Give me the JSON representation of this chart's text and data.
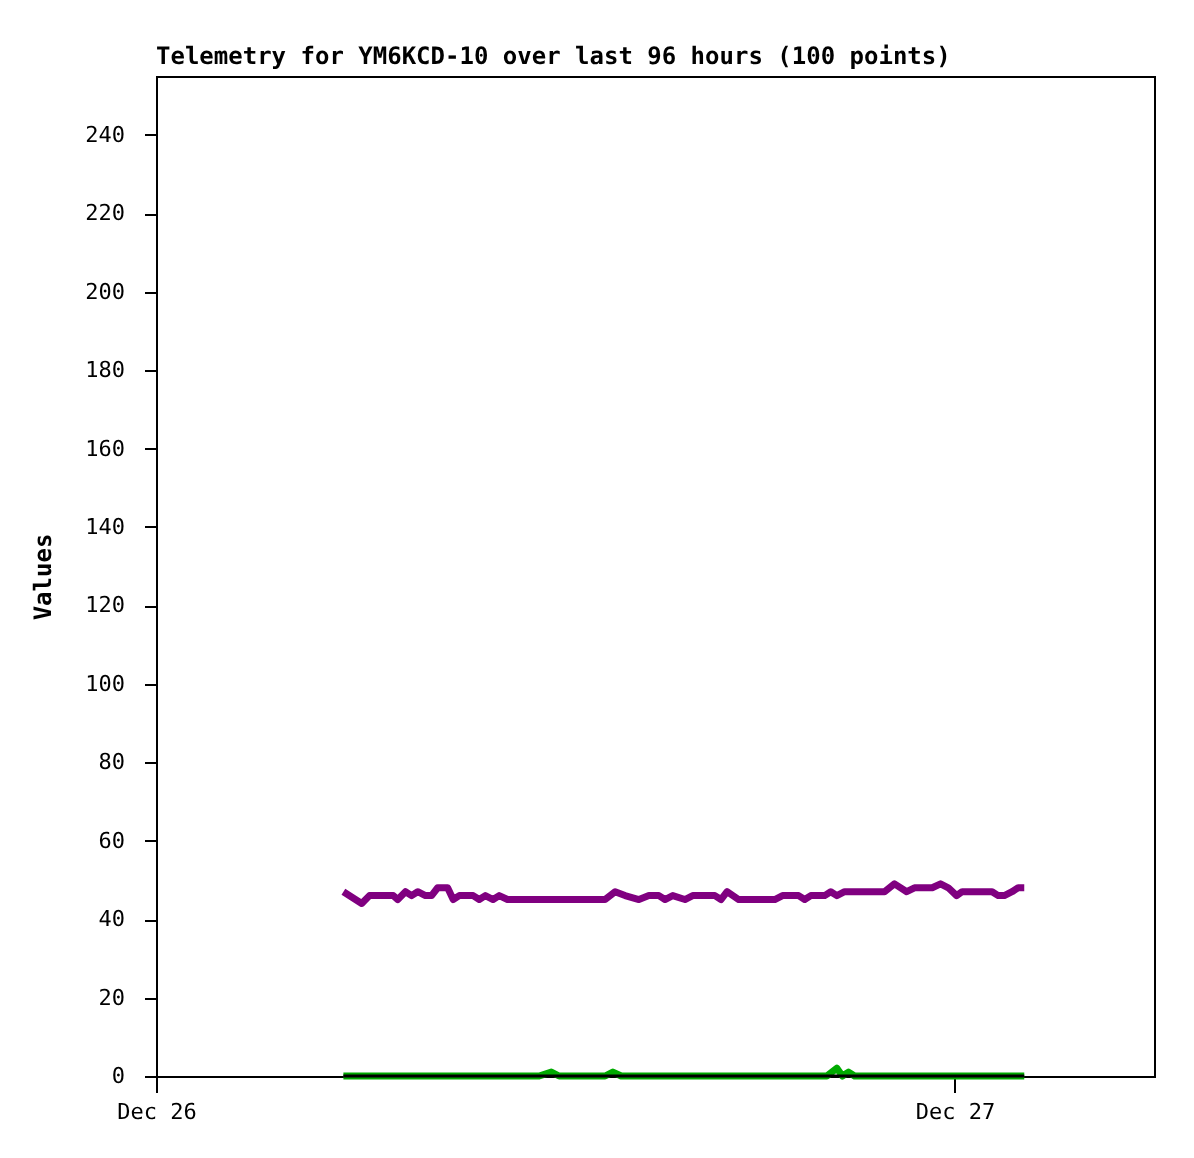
{
  "chart_data": {
    "type": "line",
    "title": "Telemetry for YM6KCD-10 over last 96 hours (100 points)",
    "ylabel": "Values",
    "xlim": [
      "--12-26T00:00",
      "--12-27T06:00"
    ],
    "xticks": [
      {
        "value": "--12-26T00:00",
        "label": "Dec 26"
      },
      {
        "value": "--12-27T00:00",
        "label": "Dec 27"
      }
    ],
    "ylim": [
      0,
      255
    ],
    "yticks": [
      0,
      20,
      40,
      60,
      80,
      100,
      120,
      140,
      160,
      180,
      200,
      220,
      240
    ],
    "grid": false,
    "legend": false,
    "marker": "none",
    "line_style": "solid",
    "series": [
      {
        "color": "#800080",
        "x": [
          "--12-26T05:38",
          "--12-26T06:11",
          "--12-26T06:25",
          "--12-26T07:08",
          "--12-26T07:16",
          "--12-26T07:30",
          "--12-26T07:41",
          "--12-26T07:52",
          "--12-26T08:06",
          "--12-26T08:17",
          "--12-26T08:28",
          "--12-26T08:46",
          "--12-26T08:56",
          "--12-26T09:07",
          "--12-26T09:32",
          "--12-26T09:43",
          "--12-26T09:54",
          "--12-26T10:08",
          "--12-26T10:19",
          "--12-26T10:34",
          "--12-26T13:19",
          "--12-26T13:30",
          "--12-26T13:48",
          "--12-26T14:06",
          "--12-26T14:31",
          "--12-26T14:49",
          "--12-26T15:07",
          "--12-26T15:18",
          "--12-26T15:32",
          "--12-26T15:54",
          "--12-26T16:08",
          "--12-26T16:48",
          "--12-26T16:59",
          "--12-26T17:10",
          "--12-26T17:31",
          "--12-26T18:36",
          "--12-26T18:50",
          "--12-26T19:19",
          "--12-26T19:30",
          "--12-26T19:41",
          "--12-26T20:06",
          "--12-26T20:17",
          "--12-26T20:28",
          "--12-26T20:42",
          "--12-26T21:54",
          "--12-26T22:12",
          "--12-26T22:34",
          "--12-26T22:48",
          "--12-26T23:20",
          "--12-26T23:35",
          "--12-26T23:49",
          "--12-27T00:04",
          "--12-27T00:14",
          "--12-27T01:08",
          "--12-27T01:19",
          "--12-27T01:30",
          "--12-27T01:44",
          "--12-27T01:55",
          "--12-27T02:06"
        ],
        "values": [
          47,
          44,
          46,
          46,
          45,
          47,
          46,
          47,
          46,
          46,
          48,
          48,
          45,
          46,
          46,
          45,
          46,
          45,
          46,
          45,
          45,
          45,
          47,
          46,
          45,
          46,
          46,
          45,
          46,
          45,
          46,
          46,
          45,
          47,
          45,
          45,
          46,
          46,
          45,
          46,
          46,
          47,
          46,
          47,
          47,
          49,
          47,
          48,
          48,
          49,
          48,
          46,
          47,
          47,
          46,
          46,
          47,
          48,
          48
        ]
      },
      {
        "color": "#00aa00",
        "x": [
          "--12-26T05:38",
          "--12-26T11:31",
          "--12-26T11:53",
          "--12-26T12:07",
          "--12-26T13:30",
          "--12-26T13:44",
          "--12-26T13:59",
          "--12-26T20:10",
          "--12-26T20:28",
          "--12-26T20:38",
          "--12-26T20:49",
          "--12-26T21:00",
          "--12-27T02:06"
        ],
        "values": [
          0,
          0,
          1,
          0,
          0,
          1,
          0,
          0,
          2,
          0,
          1,
          0,
          0
        ]
      },
      {
        "color": "#000000",
        "x": [
          "--12-26T05:38",
          "--12-27T02:06"
        ],
        "values": [
          0,
          0
        ]
      }
    ]
  }
}
